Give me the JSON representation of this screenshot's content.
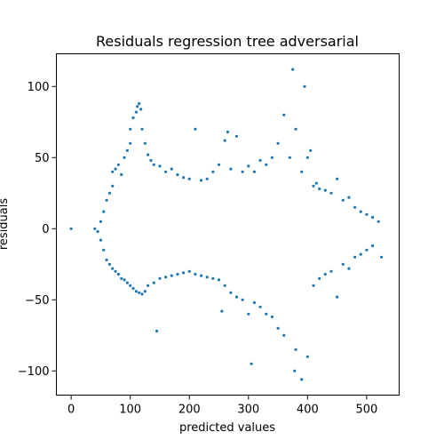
{
  "chart_data": {
    "type": "scatter",
    "title": "Residuals regression tree adversarial",
    "xlabel": "predicted values",
    "ylabel": "residuals",
    "xlim": [
      -25,
      555
    ],
    "ylim": [
      -117,
      123
    ],
    "xticks": [
      0,
      100,
      200,
      300,
      400,
      500
    ],
    "xtick_labels": [
      "0",
      "100",
      "200",
      "300",
      "400",
      "500"
    ],
    "yticks": [
      -100,
      -50,
      0,
      50,
      100
    ],
    "ytick_labels": [
      "−100",
      "−50",
      "0",
      "50",
      "100"
    ],
    "grid": false,
    "legend": "none",
    "point_color": "#1f77b4",
    "series": [
      {
        "values": [
          [
            0,
            0
          ],
          [
            40,
            0
          ],
          [
            45,
            -2
          ],
          [
            50,
            5
          ],
          [
            50,
            -8
          ],
          [
            55,
            12
          ],
          [
            55,
            -15
          ],
          [
            60,
            20
          ],
          [
            60,
            -22
          ],
          [
            65,
            25
          ],
          [
            65,
            -25
          ],
          [
            70,
            30
          ],
          [
            70,
            -28
          ],
          [
            70,
            40
          ],
          [
            75,
            42
          ],
          [
            75,
            -30
          ],
          [
            80,
            45
          ],
          [
            80,
            -32
          ],
          [
            85,
            38
          ],
          [
            85,
            -35
          ],
          [
            90,
            50
          ],
          [
            90,
            -36
          ],
          [
            95,
            55
          ],
          [
            95,
            -38
          ],
          [
            100,
            60
          ],
          [
            100,
            -40
          ],
          [
            100,
            70
          ],
          [
            105,
            78
          ],
          [
            105,
            -42
          ],
          [
            110,
            82
          ],
          [
            110,
            -44
          ],
          [
            112,
            86
          ],
          [
            115,
            88
          ],
          [
            115,
            -45
          ],
          [
            118,
            84
          ],
          [
            120,
            70
          ],
          [
            120,
            -46
          ],
          [
            125,
            60
          ],
          [
            125,
            -44
          ],
          [
            130,
            52
          ],
          [
            130,
            -40
          ],
          [
            135,
            48
          ],
          [
            140,
            45
          ],
          [
            140,
            -38
          ],
          [
            145,
            -72
          ],
          [
            150,
            44
          ],
          [
            150,
            -35
          ],
          [
            160,
            40
          ],
          [
            160,
            -34
          ],
          [
            170,
            42
          ],
          [
            170,
            -33
          ],
          [
            180,
            38
          ],
          [
            180,
            -32
          ],
          [
            190,
            36
          ],
          [
            190,
            -31
          ],
          [
            200,
            35
          ],
          [
            200,
            -30
          ],
          [
            210,
            70
          ],
          [
            210,
            -32
          ],
          [
            220,
            34
          ],
          [
            220,
            -33
          ],
          [
            230,
            35
          ],
          [
            230,
            -34
          ],
          [
            240,
            40
          ],
          [
            240,
            -35
          ],
          [
            250,
            45
          ],
          [
            250,
            -36
          ],
          [
            255,
            -58
          ],
          [
            260,
            62
          ],
          [
            260,
            -40
          ],
          [
            265,
            68
          ],
          [
            270,
            42
          ],
          [
            270,
            -45
          ],
          [
            280,
            65
          ],
          [
            280,
            -48
          ],
          [
            290,
            40
          ],
          [
            290,
            -50
          ],
          [
            300,
            44
          ],
          [
            300,
            -60
          ],
          [
            305,
            -95
          ],
          [
            310,
            40
          ],
          [
            310,
            -52
          ],
          [
            320,
            48
          ],
          [
            320,
            -55
          ],
          [
            330,
            45
          ],
          [
            330,
            -60
          ],
          [
            340,
            50
          ],
          [
            340,
            -62
          ],
          [
            350,
            60
          ],
          [
            350,
            -70
          ],
          [
            360,
            80
          ],
          [
            360,
            -75
          ],
          [
            370,
            50
          ],
          [
            375,
            112
          ],
          [
            378,
            -100
          ],
          [
            380,
            70
          ],
          [
            380,
            -85
          ],
          [
            390,
            40
          ],
          [
            390,
            -106
          ],
          [
            395,
            100
          ],
          [
            400,
            50
          ],
          [
            400,
            -90
          ],
          [
            405,
            55
          ],
          [
            410,
            30
          ],
          [
            410,
            -40
          ],
          [
            415,
            32
          ],
          [
            420,
            28
          ],
          [
            420,
            -35
          ],
          [
            430,
            27
          ],
          [
            430,
            -32
          ],
          [
            440,
            25
          ],
          [
            440,
            -30
          ],
          [
            450,
            35
          ],
          [
            450,
            -48
          ],
          [
            460,
            20
          ],
          [
            460,
            -25
          ],
          [
            470,
            22
          ],
          [
            470,
            -28
          ],
          [
            480,
            15
          ],
          [
            480,
            -20
          ],
          [
            490,
            12
          ],
          [
            490,
            -18
          ],
          [
            500,
            10
          ],
          [
            500,
            -15
          ],
          [
            510,
            8
          ],
          [
            510,
            -12
          ],
          [
            520,
            5
          ],
          [
            525,
            -20
          ]
        ]
      }
    ]
  }
}
